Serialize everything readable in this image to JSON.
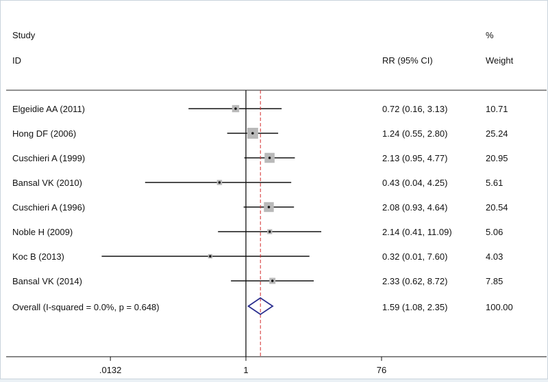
{
  "chart_data": {
    "type": "forest",
    "scale": "log",
    "headers": {
      "study_line1": "Study",
      "study_line2": "ID",
      "effect": "RR (95% CI)",
      "weight_line1": "%",
      "weight_line2": "Weight"
    },
    "studies": [
      {
        "label": "Elgeidie AA (2011)",
        "rr": 0.72,
        "lo": 0.16,
        "hi": 3.13,
        "ci_text": "0.72 (0.16, 3.13)",
        "weight": 10.71,
        "weight_text": "10.71"
      },
      {
        "label": "Hong DF (2006)",
        "rr": 1.24,
        "lo": 0.55,
        "hi": 2.8,
        "ci_text": "1.24 (0.55, 2.80)",
        "weight": 25.24,
        "weight_text": "25.24"
      },
      {
        "label": "Cuschieri A (1999)",
        "rr": 2.13,
        "lo": 0.95,
        "hi": 4.77,
        "ci_text": "2.13 (0.95, 4.77)",
        "weight": 20.95,
        "weight_text": "20.95"
      },
      {
        "label": "Bansal VK (2010)",
        "rr": 0.43,
        "lo": 0.04,
        "hi": 4.25,
        "ci_text": "0.43 (0.04, 4.25)",
        "weight": 5.61,
        "weight_text": "5.61"
      },
      {
        "label": "Cuschieri A (1996)",
        "rr": 2.08,
        "lo": 0.93,
        "hi": 4.64,
        "ci_text": "2.08 (0.93, 4.64)",
        "weight": 20.54,
        "weight_text": "20.54"
      },
      {
        "label": "Noble H (2009)",
        "rr": 2.14,
        "lo": 0.41,
        "hi": 11.09,
        "ci_text": "2.14 (0.41, 11.09)",
        "weight": 5.06,
        "weight_text": "5.06"
      },
      {
        "label": "Koc B (2013)",
        "rr": 0.32,
        "lo": 0.01,
        "hi": 7.6,
        "ci_text": "0.32 (0.01, 7.60)",
        "weight": 4.03,
        "weight_text": "4.03"
      },
      {
        "label": "Bansal VK (2014)",
        "rr": 2.33,
        "lo": 0.62,
        "hi": 8.72,
        "ci_text": "2.33 (0.62, 8.72)",
        "weight": 7.85,
        "weight_text": "7.85"
      }
    ],
    "overall": {
      "label": "Overall  (I-squared = 0.0%, p = 0.648)",
      "rr": 1.59,
      "lo": 1.08,
      "hi": 2.35,
      "ci_text": "1.59 (1.08, 2.35)",
      "weight_text": "100.00"
    },
    "x_ticks": [
      {
        "value": 0.0132,
        "label": ".0132"
      },
      {
        "value": 1,
        "label": "1"
      },
      {
        "value": 76,
        "label": "76"
      }
    ],
    "null_line": 1,
    "colors": {
      "ci_line": "#111111",
      "box": "#b9b9b9",
      "diamond": "#2b2f8f",
      "overall_line": "#d22b2b",
      "axis": "#111111"
    }
  }
}
